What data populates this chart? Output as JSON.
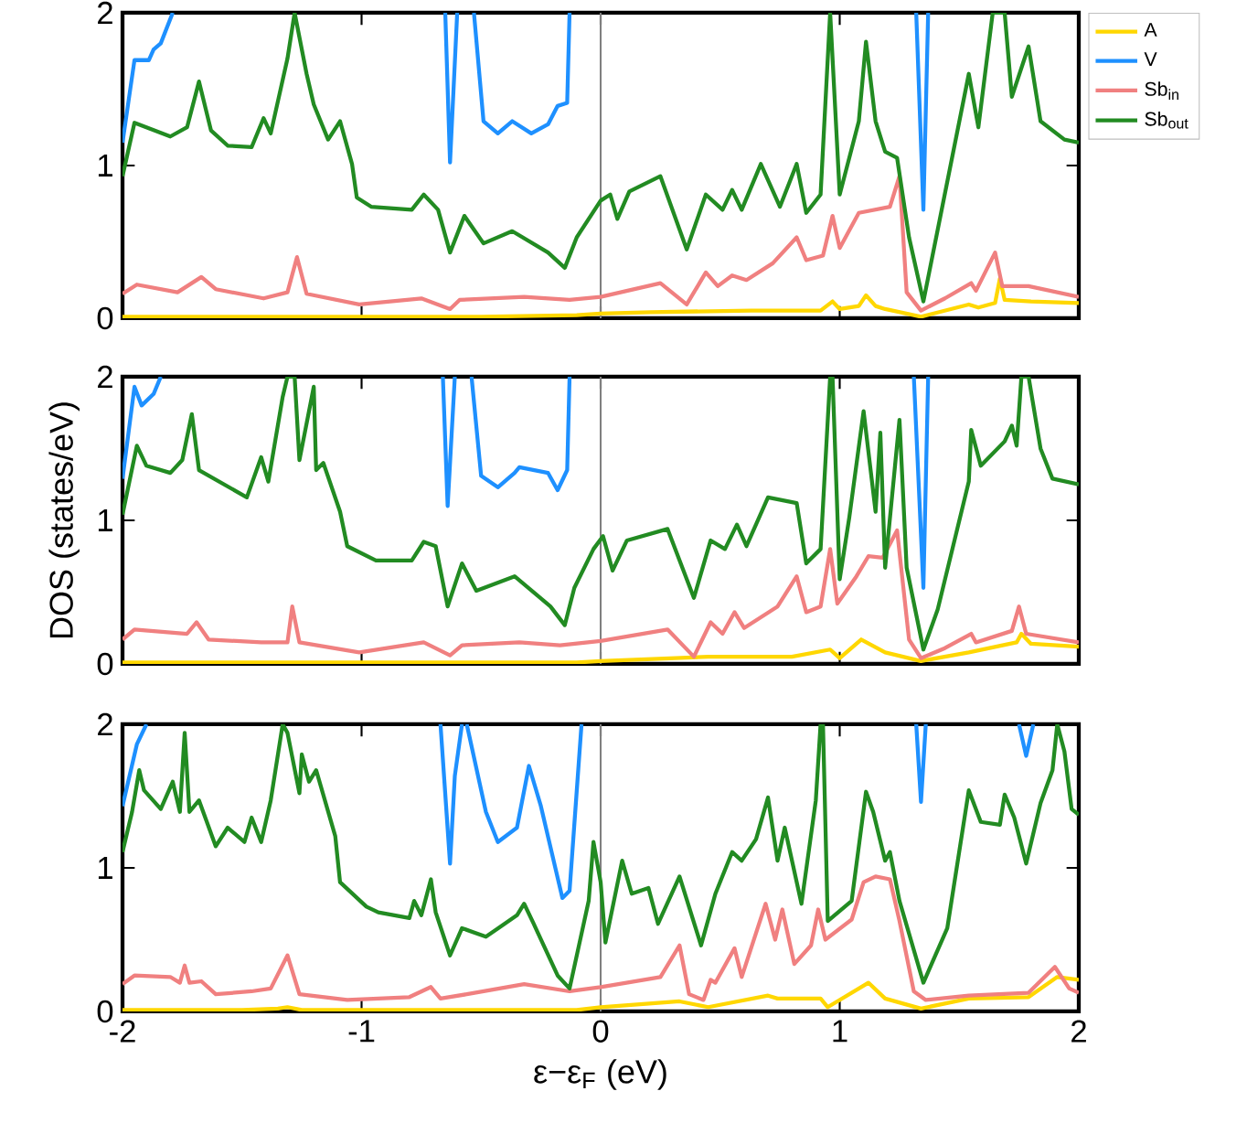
{
  "chart_data": [
    {
      "type": "line",
      "xlim": [
        -2,
        2
      ],
      "ylim": [
        0,
        2
      ],
      "xticks": [
        -2,
        -1,
        0,
        1,
        2
      ],
      "yticks": [
        0,
        1,
        2
      ],
      "tick_labels": "y",
      "legend": "top right",
      "ref_lines": [
        {
          "axis": "x",
          "value": 0,
          "color": "#808080"
        }
      ],
      "series": [
        {
          "name": "A",
          "color": "#ffd700",
          "x": [
            -2,
            -1.5,
            -1.0,
            -0.5,
            -0.1,
            0.0,
            0.21,
            0.63,
            0.92,
            0.97,
            1.0,
            1.08,
            1.11,
            1.15,
            1.19,
            1.34,
            1.54,
            1.58,
            1.65,
            1.67,
            1.69,
            1.8,
            2.0
          ],
          "values": [
            0.01,
            0.01,
            0.01,
            0.01,
            0.02,
            0.03,
            0.04,
            0.05,
            0.05,
            0.11,
            0.06,
            0.08,
            0.15,
            0.08,
            0.06,
            0.01,
            0.09,
            0.07,
            0.1,
            0.26,
            0.12,
            0.11,
            0.1
          ]
        },
        {
          "name": "V",
          "color": "#1e90ff",
          "x": [
            -2.0,
            -1.95,
            -1.89,
            -1.87,
            -1.84,
            -1.79,
            -1.7,
            -0.65,
            -0.63,
            -0.6,
            -0.56,
            -0.53,
            -0.49,
            -0.43,
            -0.37,
            -0.29,
            -0.22,
            -0.18,
            -0.14,
            -0.13,
            0.5,
            1.32,
            1.35,
            1.37
          ],
          "values": [
            1.15,
            1.69,
            1.69,
            1.76,
            1.8,
            2.0,
            null,
            2.0,
            1.02,
            2.0,
            null,
            2.0,
            1.29,
            1.21,
            1.29,
            1.21,
            1.27,
            1.39,
            1.41,
            2.0,
            null,
            2.0,
            0.71,
            2.0
          ]
        },
        {
          "name": "Sb$_{in}$",
          "color": "#f08080",
          "x": [
            -2.0,
            -1.94,
            -1.77,
            -1.67,
            -1.61,
            -1.41,
            -1.31,
            -1.27,
            -1.23,
            -1.01,
            -0.75,
            -0.63,
            -0.59,
            -0.32,
            -0.13,
            0.0,
            0.25,
            0.36,
            0.44,
            0.49,
            0.55,
            0.61,
            0.72,
            0.82,
            0.86,
            0.93,
            0.97,
            1.0,
            1.08,
            1.21,
            1.25,
            1.28,
            1.34,
            1.44,
            1.55,
            1.57,
            1.65,
            1.68,
            1.79,
            2.0
          ],
          "values": [
            0.16,
            0.22,
            0.17,
            0.27,
            0.19,
            0.13,
            0.17,
            0.4,
            0.16,
            0.09,
            0.13,
            0.06,
            0.12,
            0.14,
            0.12,
            0.14,
            0.23,
            0.09,
            0.3,
            0.21,
            0.28,
            0.25,
            0.36,
            0.53,
            0.38,
            0.41,
            0.67,
            0.46,
            0.69,
            0.73,
            0.93,
            0.17,
            0.05,
            0.13,
            0.23,
            0.18,
            0.43,
            0.21,
            0.21,
            0.14
          ]
        },
        {
          "name": "Sb$_{out}$",
          "color": "#228b22",
          "x": [
            -2.0,
            -1.95,
            -1.8,
            -1.73,
            -1.68,
            -1.63,
            -1.56,
            -1.46,
            -1.41,
            -1.38,
            -1.31,
            -1.28,
            -1.23,
            -1.2,
            -1.14,
            -1.09,
            -1.04,
            -1.02,
            -0.96,
            -0.79,
            -0.74,
            -0.68,
            -0.63,
            -0.57,
            -0.49,
            -0.37,
            -0.22,
            -0.15,
            -0.1,
            0.0,
            0.04,
            0.07,
            0.12,
            0.25,
            0.36,
            0.44,
            0.51,
            0.55,
            0.59,
            0.67,
            0.75,
            0.82,
            0.86,
            0.92,
            0.96,
            1.0,
            1.08,
            1.11,
            1.15,
            1.19,
            1.24,
            1.29,
            1.35,
            1.54,
            1.58,
            1.64,
            1.69,
            1.72,
            1.79,
            1.84,
            1.94,
            2.0
          ],
          "values": [
            0.93,
            1.28,
            1.19,
            1.25,
            1.55,
            1.23,
            1.13,
            1.12,
            1.31,
            1.21,
            1.7,
            2.0,
            1.6,
            1.4,
            1.17,
            1.29,
            1.01,
            0.79,
            0.73,
            0.71,
            0.81,
            0.71,
            0.43,
            0.67,
            0.49,
            0.57,
            0.43,
            0.33,
            0.53,
            0.77,
            0.81,
            0.65,
            0.83,
            0.93,
            0.45,
            0.81,
            0.71,
            0.84,
            0.71,
            1.01,
            0.73,
            1.01,
            0.69,
            0.81,
            2.0,
            0.81,
            1.29,
            1.81,
            1.29,
            1.09,
            1.05,
            0.53,
            0.11,
            1.6,
            1.25,
            2.0,
            2.0,
            1.45,
            1.78,
            1.29,
            1.17,
            1.15
          ]
        }
      ]
    },
    {
      "type": "line",
      "xlim": [
        -2,
        2
      ],
      "ylim": [
        0,
        2
      ],
      "xticks": [
        -2,
        -1,
        0,
        1,
        2
      ],
      "yticks": [
        0,
        1,
        2
      ],
      "tick_labels": "y",
      "ylabel": "DOS (states/eV)",
      "ref_lines": [
        {
          "axis": "x",
          "value": 0,
          "color": "#808080"
        }
      ],
      "series": [
        {
          "color": "#ffd700",
          "x": [
            -2,
            -1.5,
            -1.0,
            -0.5,
            -0.1,
            0.0,
            0.45,
            0.8,
            0.96,
            1.0,
            1.09,
            1.19,
            1.34,
            1.54,
            1.74,
            1.76,
            1.8,
            2.0
          ],
          "values": [
            0.01,
            0.01,
            0.01,
            0.01,
            0.01,
            0.02,
            0.05,
            0.05,
            0.1,
            0.04,
            0.17,
            0.08,
            0.02,
            0.08,
            0.15,
            0.21,
            0.14,
            0.12
          ]
        },
        {
          "color": "#1e90ff",
          "x": [
            -2.0,
            -1.95,
            -1.92,
            -1.87,
            -1.84,
            -1.7,
            -0.66,
            -0.64,
            -0.61,
            -0.58,
            -0.54,
            -0.5,
            -0.43,
            -0.36,
            -0.34,
            -0.22,
            -0.18,
            -0.14,
            -0.13,
            0.5,
            1.31,
            1.35,
            1.37
          ],
          "values": [
            1.29,
            1.93,
            1.8,
            1.88,
            2.0,
            null,
            2.0,
            1.1,
            2.0,
            null,
            2.0,
            1.31,
            1.23,
            1.33,
            1.37,
            1.33,
            1.21,
            1.35,
            2.0,
            null,
            2.0,
            0.53,
            2.0
          ]
        },
        {
          "color": "#f08080",
          "x": [
            -2.0,
            -1.95,
            -1.73,
            -1.69,
            -1.64,
            -1.42,
            -1.31,
            -1.29,
            -1.26,
            -1.01,
            -0.74,
            -0.63,
            -0.58,
            -0.34,
            -0.17,
            0.0,
            0.28,
            0.39,
            0.46,
            0.51,
            0.56,
            0.6,
            0.74,
            0.82,
            0.86,
            0.92,
            0.96,
            0.99,
            1.07,
            1.12,
            1.18,
            1.24,
            1.29,
            1.34,
            1.44,
            1.55,
            1.57,
            1.72,
            1.75,
            1.78,
            2.0
          ],
          "values": [
            0.17,
            0.24,
            0.21,
            0.29,
            0.17,
            0.15,
            0.15,
            0.4,
            0.15,
            0.08,
            0.15,
            0.06,
            0.13,
            0.15,
            0.13,
            0.16,
            0.24,
            0.05,
            0.29,
            0.21,
            0.36,
            0.25,
            0.4,
            0.61,
            0.36,
            0.4,
            0.8,
            0.42,
            0.61,
            0.75,
            0.74,
            0.93,
            0.17,
            0.04,
            0.11,
            0.21,
            0.15,
            0.23,
            0.4,
            0.21,
            0.15
          ]
        },
        {
          "color": "#228b22",
          "x": [
            -2.0,
            -1.94,
            -1.9,
            -1.8,
            -1.75,
            -1.71,
            -1.68,
            -1.48,
            -1.42,
            -1.39,
            -1.33,
            -1.31,
            -1.28,
            -1.26,
            -1.2,
            -1.19,
            -1.16,
            -1.09,
            -1.06,
            -0.94,
            -0.79,
            -0.74,
            -0.69,
            -0.64,
            -0.58,
            -0.52,
            -0.36,
            -0.21,
            -0.15,
            -0.11,
            -0.03,
            0.01,
            0.05,
            0.11,
            0.28,
            0.39,
            0.46,
            0.52,
            0.57,
            0.61,
            0.7,
            0.82,
            0.86,
            0.92,
            0.96,
            0.97,
            1.0,
            1.04,
            1.1,
            1.15,
            1.17,
            1.19,
            1.25,
            1.28,
            1.35,
            1.41,
            1.54,
            1.55,
            1.59,
            1.69,
            1.72,
            1.74,
            1.76,
            1.79,
            1.84,
            1.89,
            2.0
          ],
          "values": [
            1.04,
            1.52,
            1.38,
            1.33,
            1.42,
            1.74,
            1.35,
            1.16,
            1.44,
            1.27,
            1.86,
            2.0,
            2.0,
            1.42,
            1.93,
            1.35,
            1.4,
            1.06,
            0.82,
            0.72,
            0.72,
            0.85,
            0.82,
            0.4,
            0.7,
            0.51,
            0.61,
            0.4,
            0.27,
            0.53,
            0.8,
            0.89,
            0.65,
            0.86,
            0.94,
            0.46,
            0.86,
            0.8,
            0.97,
            0.82,
            1.16,
            1.12,
            0.7,
            0.8,
            2.0,
            2.0,
            0.59,
            1.02,
            1.76,
            1.06,
            1.61,
            0.67,
            1.7,
            0.67,
            0.1,
            0.38,
            1.27,
            1.63,
            1.38,
            1.55,
            1.66,
            1.52,
            2.0,
            2.0,
            1.5,
            1.29,
            1.25
          ]
        }
      ]
    },
    {
      "type": "line",
      "xlim": [
        -2,
        2
      ],
      "ylim": [
        0,
        2
      ],
      "xticks": [
        -2,
        -1,
        0,
        1,
        2
      ],
      "yticks": [
        0,
        1,
        2
      ],
      "xlabel": "ε−ε$_{F}$ (eV)",
      "ref_lines": [
        {
          "axis": "x",
          "value": 0,
          "color": "#808080"
        }
      ],
      "series": [
        {
          "color": "#ffd700",
          "x": [
            -2,
            -1.5,
            -1.35,
            -1.31,
            -1.25,
            -0.5,
            -0.1,
            0.0,
            0.33,
            0.45,
            0.7,
            0.74,
            0.92,
            0.95,
            1.12,
            1.19,
            1.34,
            1.54,
            1.79,
            1.91,
            2.0
          ],
          "values": [
            0.01,
            0.01,
            0.02,
            0.03,
            0.01,
            0.01,
            0.01,
            0.03,
            0.07,
            0.03,
            0.11,
            0.09,
            0.09,
            0.03,
            0.2,
            0.09,
            0.02,
            0.09,
            0.1,
            0.24,
            0.22
          ]
        },
        {
          "color": "#1e90ff",
          "x": [
            -2.0,
            -1.94,
            -1.9,
            -1.7,
            -0.67,
            -0.63,
            -0.61,
            -0.58,
            -0.57,
            -0.56,
            -0.48,
            -0.43,
            -0.35,
            -0.3,
            -0.25,
            -0.16,
            -0.13,
            -0.08,
            0.5,
            1.32,
            1.34,
            1.36,
            1.5,
            1.75,
            1.78,
            1.81
          ],
          "values": [
            1.43,
            1.86,
            2.0,
            null,
            2.0,
            1.03,
            1.64,
            2.0,
            null,
            2.0,
            1.39,
            1.18,
            1.28,
            1.71,
            1.43,
            0.79,
            0.84,
            2.0,
            null,
            2.0,
            1.46,
            2.0,
            null,
            2.0,
            1.78,
            2.0
          ]
        },
        {
          "color": "#f08080",
          "x": [
            -2.0,
            -1.95,
            -1.8,
            -1.76,
            -1.74,
            -1.72,
            -1.67,
            -1.61,
            -1.46,
            -1.38,
            -1.31,
            -1.26,
            -1.06,
            -0.8,
            -0.71,
            -0.67,
            -0.56,
            -0.32,
            -0.13,
            0.0,
            0.25,
            0.33,
            0.37,
            0.43,
            0.46,
            0.48,
            0.56,
            0.59,
            0.69,
            0.73,
            0.76,
            0.81,
            0.88,
            0.91,
            0.94,
            1.05,
            1.1,
            1.15,
            1.21,
            1.25,
            1.31,
            1.36,
            1.54,
            1.79,
            1.9,
            1.96,
            2.0
          ],
          "values": [
            0.19,
            0.25,
            0.24,
            0.2,
            0.32,
            0.2,
            0.21,
            0.12,
            0.14,
            0.16,
            0.39,
            0.12,
            0.08,
            0.1,
            0.17,
            0.09,
            0.12,
            0.19,
            0.14,
            0.17,
            0.24,
            0.46,
            0.12,
            0.08,
            0.22,
            0.2,
            0.44,
            0.24,
            0.75,
            0.5,
            0.71,
            0.33,
            0.46,
            0.71,
            0.5,
            0.64,
            0.9,
            0.94,
            0.92,
            0.63,
            0.14,
            0.08,
            0.11,
            0.13,
            0.31,
            0.16,
            0.13
          ]
        },
        {
          "color": "#228b22",
          "x": [
            -2.0,
            -1.96,
            -1.93,
            -1.91,
            -1.84,
            -1.79,
            -1.76,
            -1.74,
            -1.72,
            -1.68,
            -1.61,
            -1.56,
            -1.49,
            -1.46,
            -1.42,
            -1.38,
            -1.33,
            -1.31,
            -1.26,
            -1.25,
            -1.22,
            -1.19,
            -1.11,
            -1.09,
            -0.98,
            -0.93,
            -0.8,
            -0.78,
            -0.75,
            -0.71,
            -0.69,
            -0.63,
            -0.58,
            -0.48,
            -0.35,
            -0.32,
            -0.28,
            -0.18,
            -0.13,
            -0.05,
            -0.03,
            0.0,
            0.02,
            0.09,
            0.13,
            0.2,
            0.24,
            0.33,
            0.42,
            0.48,
            0.55,
            0.59,
            0.65,
            0.7,
            0.74,
            0.77,
            0.84,
            0.9,
            0.92,
            0.93,
            0.95,
            1.05,
            1.11,
            1.14,
            1.19,
            1.21,
            1.25,
            1.35,
            1.45,
            1.54,
            1.59,
            1.67,
            1.69,
            1.73,
            1.78,
            1.84,
            1.89,
            1.91,
            1.94,
            1.97,
            2.0
          ],
          "values": [
            1.11,
            1.39,
            1.68,
            1.54,
            1.41,
            1.6,
            1.39,
            1.94,
            1.39,
            1.47,
            1.15,
            1.28,
            1.18,
            1.35,
            1.18,
            1.47,
            2.0,
            1.94,
            1.52,
            1.79,
            1.6,
            1.68,
            1.22,
            0.9,
            0.73,
            0.69,
            0.65,
            0.77,
            0.67,
            0.92,
            0.69,
            0.39,
            0.58,
            0.52,
            0.67,
            0.75,
            0.61,
            0.25,
            0.16,
            0.77,
            1.18,
            0.9,
            0.48,
            1.05,
            0.82,
            0.86,
            0.61,
            0.94,
            0.46,
            0.82,
            1.11,
            1.05,
            1.2,
            1.49,
            1.05,
            1.28,
            0.75,
            1.47,
            2.0,
            2.0,
            0.63,
            0.77,
            1.53,
            1.39,
            1.05,
            1.11,
            0.77,
            0.2,
            0.58,
            1.54,
            1.32,
            1.3,
            1.51,
            1.35,
            1.03,
            1.45,
            1.68,
            2.0,
            1.81,
            1.41,
            1.37
          ]
        }
      ]
    }
  ]
}
